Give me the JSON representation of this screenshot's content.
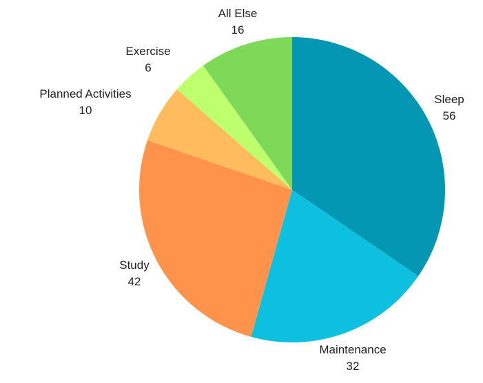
{
  "chart_data": {
    "type": "pie",
    "title": "",
    "total": 162,
    "start_angle_deg": 0,
    "direction": "clockwise",
    "slices": [
      {
        "label": "Sleep",
        "value": 56,
        "value_label": "56",
        "color": "#0397B3"
      },
      {
        "label": "Maintenance",
        "value": 32,
        "value_label": "32",
        "color": "#0EC0E0"
      },
      {
        "label": "Study",
        "value": 42,
        "value_label": "42",
        "color": "#FF934B"
      },
      {
        "label": "Planned Activities",
        "value": 10,
        "value_label": "10",
        "color": "#FFBB5C"
      },
      {
        "label": "Exercise",
        "value": 6,
        "value_label": "6",
        "color": "#BDFF6C"
      },
      {
        "label": "All Else",
        "value": 16,
        "value_label": "16",
        "color": "#7DD957"
      }
    ]
  }
}
